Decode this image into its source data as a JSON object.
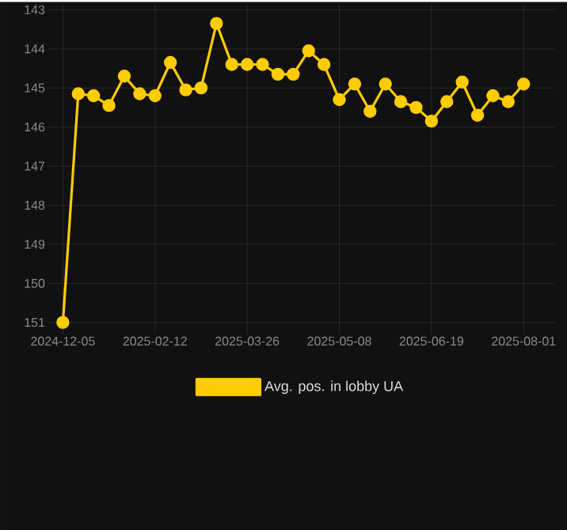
{
  "chart_data": {
    "type": "line",
    "categories": [
      "2024-12-05",
      null,
      null,
      null,
      null,
      null,
      "2025-02-12",
      null,
      null,
      null,
      null,
      null,
      "2025-03-26",
      null,
      null,
      null,
      null,
      null,
      "2025-05-08",
      null,
      null,
      null,
      null,
      null,
      "2025-06-19",
      null,
      null,
      null,
      null,
      null,
      "2025-08-01"
    ],
    "series": [
      {
        "name": "Avg. pos. in lobby UA",
        "color": "#ffcc00",
        "values": [
          151,
          145.15,
          145.2,
          145.45,
          144.7,
          145.15,
          145.2,
          144.35,
          145.05,
          145.0,
          143.35,
          144.4,
          144.4,
          144.4,
          144.65,
          144.65,
          144.05,
          144.4,
          145.3,
          144.9,
          145.6,
          144.9,
          145.35,
          145.5,
          145.85,
          145.35,
          144.85,
          145.7,
          145.2,
          145.35,
          144.9
        ]
      }
    ],
    "ylim": [
      151.3,
      142.8
    ],
    "yticks": [
      143,
      144,
      145,
      146,
      147,
      148,
      149,
      150,
      151
    ],
    "grid": true,
    "legend": "bottom",
    "marker": "circle",
    "line_style": "solid"
  }
}
